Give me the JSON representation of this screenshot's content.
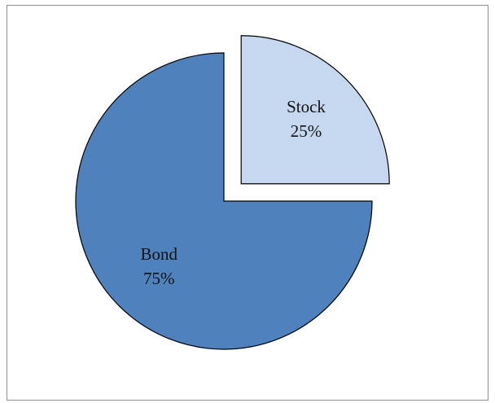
{
  "chart_data": {
    "type": "pie",
    "categories": [
      "Stock",
      "Bond"
    ],
    "values": [
      25,
      75
    ],
    "value_labels": [
      "25%",
      "75%"
    ],
    "colors": [
      "#c6d8ef",
      "#4f81bd"
    ],
    "exploded": [
      "Stock"
    ],
    "legend": "none"
  }
}
